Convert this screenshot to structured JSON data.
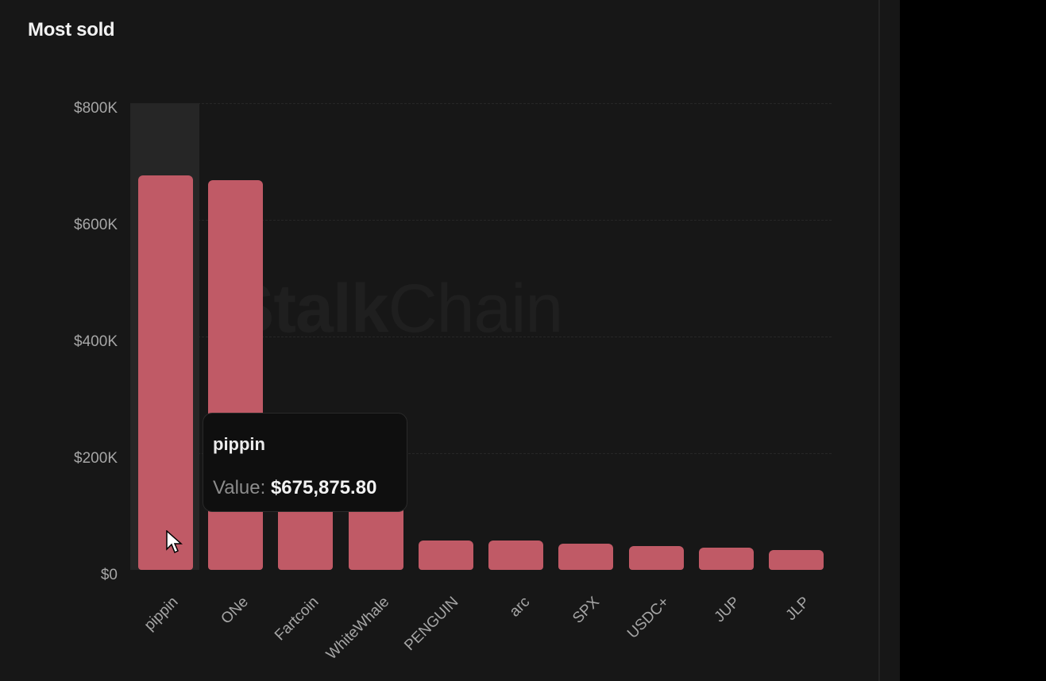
{
  "panel": {
    "title": "Most sold"
  },
  "watermark": {
    "bold": "Stalk",
    "regular": "Chain"
  },
  "tooltip": {
    "title": "pippin",
    "label": "Value:",
    "value": "$675,875.80"
  },
  "colors": {
    "bar": "#c05a66",
    "panel_bg": "#171717",
    "hover_column": "#262626",
    "tooltip_bg": "#0f0f0f"
  },
  "chart_data": {
    "type": "bar",
    "title": "Most sold",
    "xlabel": "",
    "ylabel": "",
    "ylim": [
      0,
      800000
    ],
    "yticks": [
      {
        "value": 800000,
        "label": "$800K"
      },
      {
        "value": 600000,
        "label": "$600K"
      },
      {
        "value": 400000,
        "label": "$400K"
      },
      {
        "value": 200000,
        "label": "$200K"
      },
      {
        "value": 0,
        "label": "$0"
      }
    ],
    "grid": true,
    "legend": null,
    "categories": [
      "pippin",
      "ONe",
      "Fartcoin",
      "WhiteWhale",
      "PENGUIN",
      "arc",
      "SPX",
      "USDC+",
      "JUP",
      "JLP"
    ],
    "values": [
      675875.8,
      668000,
      140000,
      130000,
      50000,
      50000,
      45000,
      41000,
      38000,
      34000
    ],
    "hovered_index": 0
  }
}
